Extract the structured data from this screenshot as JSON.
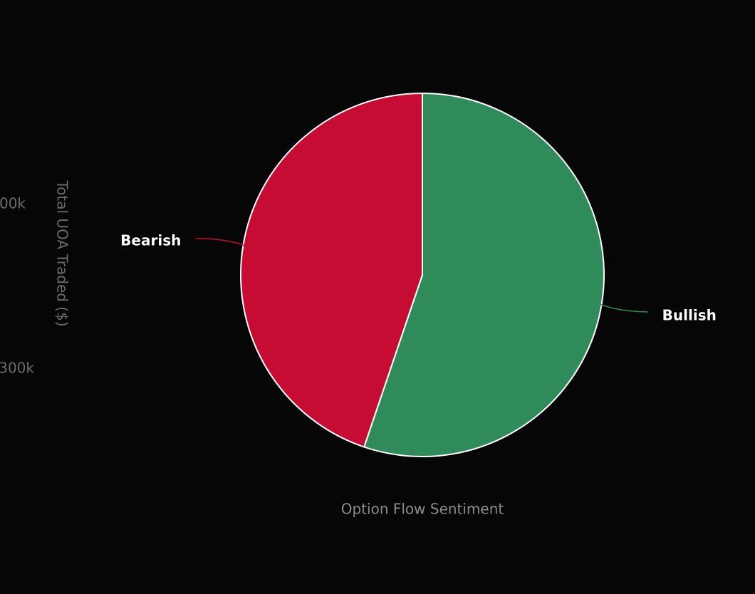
{
  "chart_data": {
    "type": "pie",
    "categories": [
      "Bullish",
      "Bearish"
    ],
    "values": [
      55.2,
      44.8
    ],
    "colors": [
      "#2f8c5a",
      "#c60c32"
    ],
    "x_axis_title": "Option Flow Sentiment",
    "y_axis_title": "Total UOA Traded ($)",
    "background_labels": [
      "00k",
      "300k"
    ]
  }
}
